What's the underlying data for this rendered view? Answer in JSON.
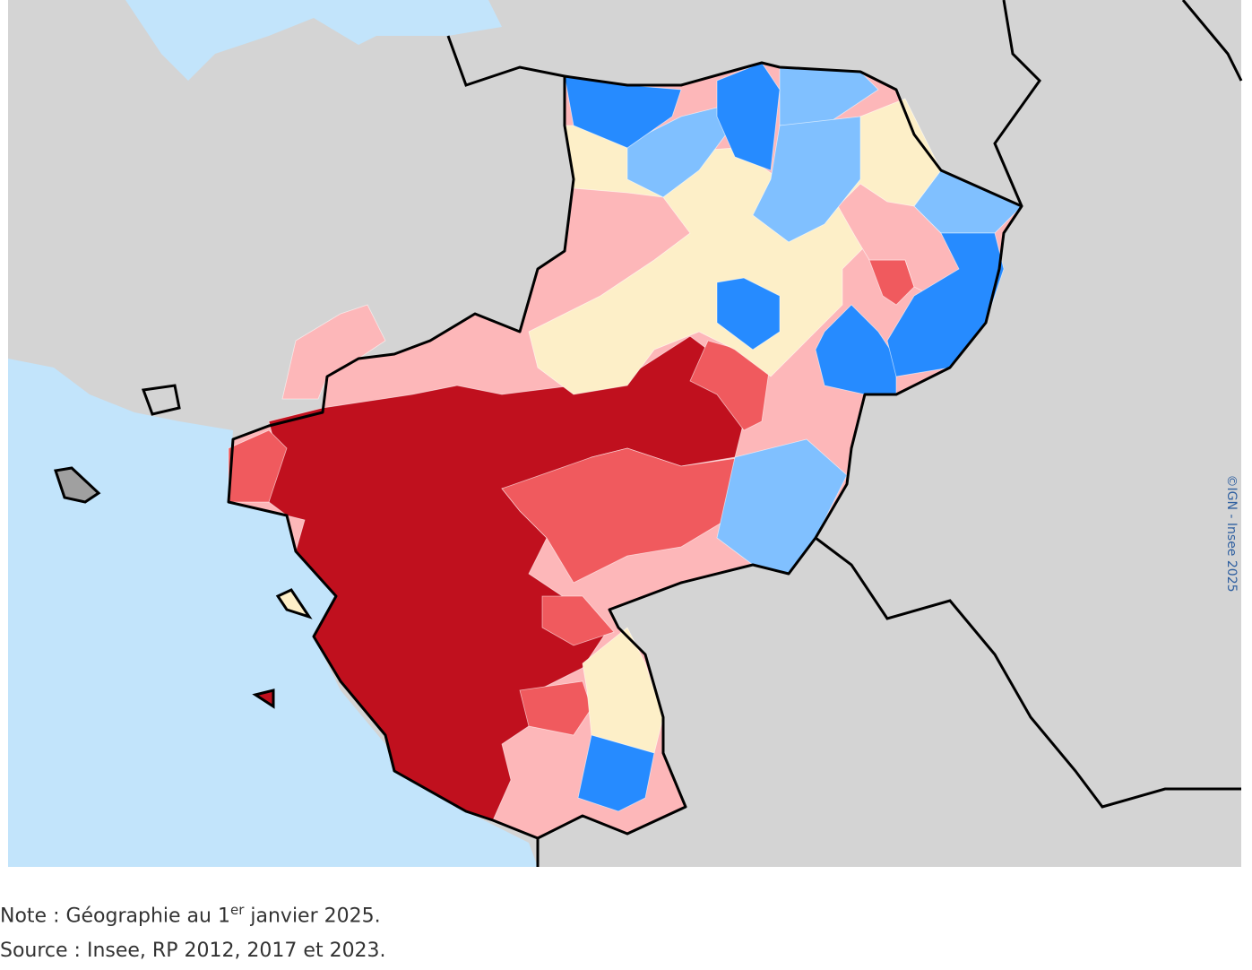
{
  "map": {
    "credit": "©IGN - Insee 2025"
  },
  "footer": {
    "note_start": "Note : Géographie au 1",
    "note_sup": "er",
    "note_end": " janvier 2025.",
    "source": "Source : Insee, RP 2012, 2017 et 2023."
  }
}
